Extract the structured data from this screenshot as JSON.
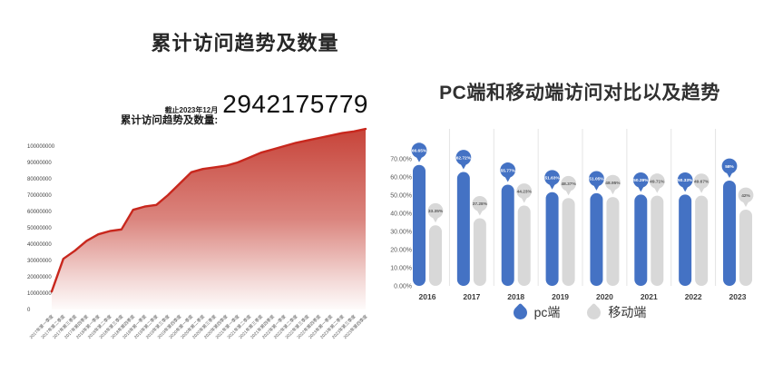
{
  "chart_data": [
    {
      "type": "area",
      "title": "累计访问趋势及数量",
      "stat_caption": "截止2023年12月",
      "stat_label": "累计访问趋势及数量:",
      "stat_value": "2942175779",
      "xlabel": "",
      "ylabel": "",
      "ylim": [
        0,
        100000000
      ],
      "grid": false,
      "legend_position": "none",
      "line_color": "#c8271d",
      "fill_color": "#c43a2f",
      "ytick_labels": [
        "100000000",
        "90000000",
        "80000000",
        "70000000",
        "60000000",
        "50000000",
        "40000000",
        "30000000",
        "20000000",
        "10000000",
        "0"
      ],
      "categories": [
        "2017年第一季度",
        "2017年第二季度",
        "2017年第三季度",
        "2017年第四季度",
        "2018年第一季度",
        "2018年第二季度",
        "2018年第三季度",
        "2018年第四季度",
        "2019年第一季度",
        "2019年第二季度",
        "2019年第三季度",
        "2019年第四季度",
        "2020年第一季度",
        "2020年第二季度",
        "2020年第三季度",
        "2020年第四季度",
        "2021年第一季度",
        "2021年第二季度",
        "2021年第三季度",
        "2021年第四季度",
        "2022年第一季度",
        "2022年第二季度",
        "2022年第三季度",
        "2022年第四季度",
        "2023年第一季度",
        "2023年第二季度",
        "2023年第三季度",
        "2023年第四季度"
      ],
      "values": [
        11000000,
        31000000,
        36000000,
        42000000,
        46000000,
        48000000,
        49000000,
        61000000,
        63000000,
        64000000,
        70000000,
        77000000,
        84000000,
        86000000,
        87000000,
        88000000,
        90000000,
        93000000,
        96000000,
        98000000,
        100000000,
        102000000,
        103500000,
        105000000,
        106500000,
        108000000,
        109000000,
        110500000
      ]
    },
    {
      "type": "bar",
      "title": "PC端和移动端访问对比以及趋势",
      "categories": [
        "2016",
        "2017",
        "2018",
        "2019",
        "2020",
        "2021",
        "2022",
        "2023"
      ],
      "ylim": [
        0,
        70
      ],
      "grid": false,
      "legend_position": "bottom",
      "ytick_labels": [
        "70.00%",
        "60.00%",
        "50.00%",
        "40.00%",
        "30.00%",
        "20.00%",
        "10.00%",
        "0.00%"
      ],
      "series": [
        {
          "name": "pc端",
          "color": "#4472c4",
          "values": [
            66.65,
            62.72,
            55.77,
            51.63,
            51.05,
            50.29,
            50.33,
            58
          ],
          "labels": [
            "66.65%",
            "62.72%",
            "55.77%",
            "51.63%",
            "51.05%",
            "50.29%",
            "50.33%",
            "58%"
          ]
        },
        {
          "name": "移动端",
          "color": "#d8d8d8",
          "values": [
            33.35,
            37.28,
            44.23,
            48.37,
            48.95,
            49.71,
            49.67,
            42
          ],
          "labels": [
            "33.35%",
            "37.28%",
            "44.23%",
            "48.37%",
            "48.95%",
            "49.71%",
            "49.67%",
            "42%"
          ]
        }
      ],
      "colors": {
        "separator": "#e4e4e4",
        "tick_text": "#595959",
        "year_text": "#3d3d3d",
        "gray_label_text": "#595959"
      }
    }
  ]
}
